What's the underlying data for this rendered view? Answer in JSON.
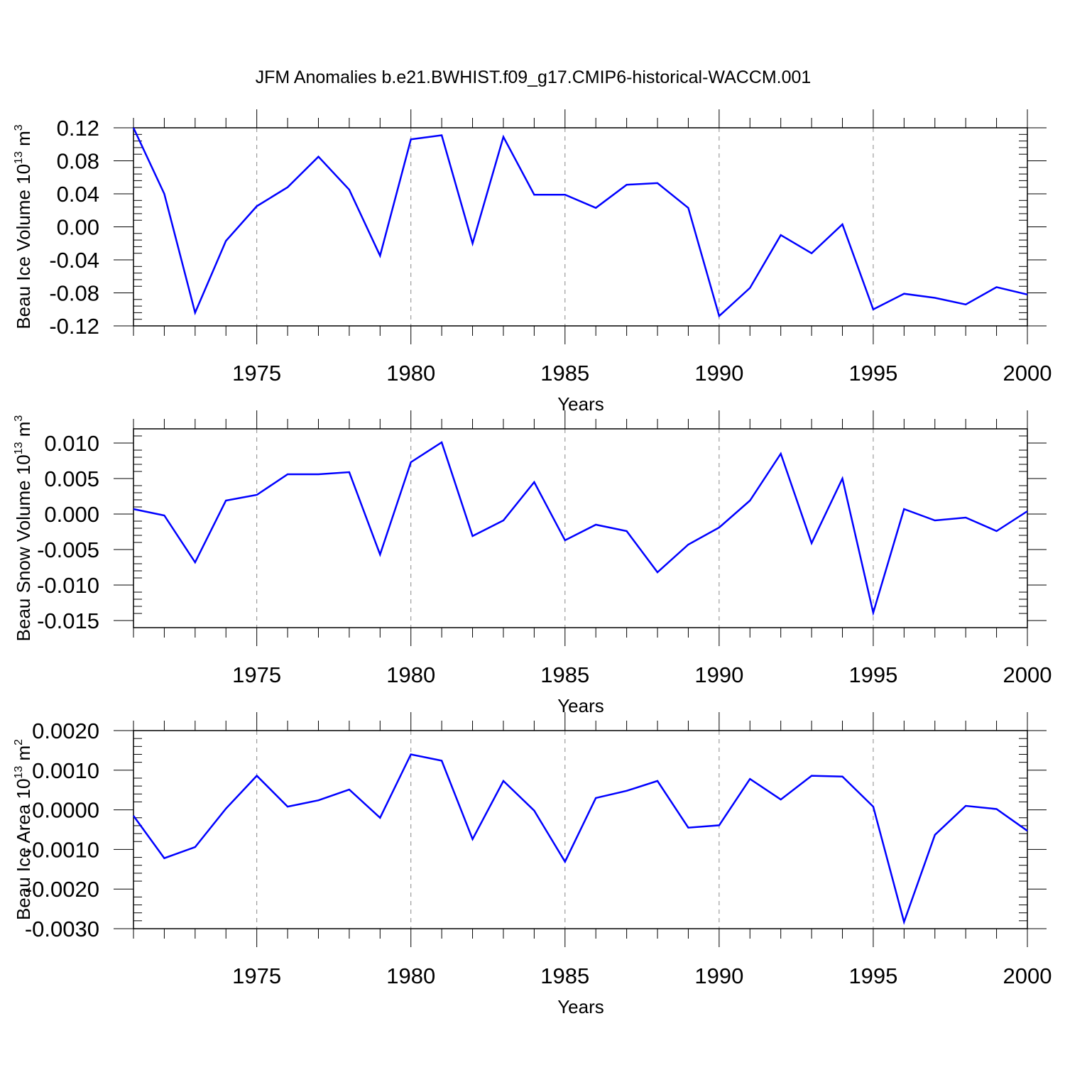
{
  "title": "JFM Anomalies b.e21.BWHIST.f09_g17.CMIP6-historical-WACCM.001",
  "colors": {
    "series": "#0000ff",
    "axes": "#000000",
    "grid": "#888888"
  },
  "chart_data": [
    {
      "type": "line",
      "xlabel": "Years",
      "ylabel_main": "Beau Ice Volume 10",
      "ylabel_exp": "13",
      "ylabel_unit": "m",
      "ylabel_unit_exp": "3",
      "xlim": [
        1971,
        2000
      ],
      "ylim": [
        -0.12,
        0.12
      ],
      "xticks": [
        1975,
        1980,
        1985,
        1990,
        1995,
        2000
      ],
      "yticks": [
        -0.12,
        -0.08,
        -0.04,
        0.0,
        0.04,
        0.08,
        0.12
      ],
      "ytick_labels": [
        "-0.12",
        "-0.08",
        "-0.04",
        "0.00",
        "0.04",
        "0.08",
        "0.12"
      ],
      "grid": "vertical dashed at labeled years",
      "x": [
        1971,
        1972,
        1973,
        1974,
        1975,
        1976,
        1977,
        1978,
        1979,
        1980,
        1981,
        1982,
        1983,
        1984,
        1985,
        1986,
        1987,
        1988,
        1989,
        1990,
        1991,
        1992,
        1993,
        1994,
        1995,
        1996,
        1997,
        1998,
        1999,
        2000
      ],
      "values": [
        0.12,
        0.04,
        -0.104,
        -0.017,
        0.025,
        0.048,
        0.085,
        0.045,
        -0.035,
        0.106,
        0.111,
        -0.02,
        0.109,
        0.039,
        0.039,
        0.023,
        0.051,
        0.053,
        0.023,
        -0.108,
        -0.074,
        -0.01,
        -0.032,
        0.003,
        -0.1,
        -0.081,
        -0.086,
        -0.094,
        -0.073,
        -0.082
      ]
    },
    {
      "type": "line",
      "xlabel": "Years",
      "ylabel_main": "Beau Snow Volume 10",
      "ylabel_exp": "13",
      "ylabel_unit": "m",
      "ylabel_unit_exp": "3",
      "xlim": [
        1971,
        2000
      ],
      "ylim": [
        -0.016,
        0.012
      ],
      "xticks": [
        1975,
        1980,
        1985,
        1990,
        1995,
        2000
      ],
      "yticks": [
        -0.015,
        -0.01,
        -0.005,
        0.0,
        0.005,
        0.01
      ],
      "ytick_labels": [
        "-0.015",
        "-0.010",
        "-0.005",
        "0.000",
        "0.005",
        "0.010"
      ],
      "grid": "vertical dashed at labeled years",
      "x": [
        1971,
        1972,
        1973,
        1974,
        1975,
        1976,
        1977,
        1978,
        1979,
        1980,
        1981,
        1982,
        1983,
        1984,
        1985,
        1986,
        1987,
        1988,
        1989,
        1990,
        1991,
        1992,
        1993,
        1994,
        1995,
        1996,
        1997,
        1998,
        1999,
        2000
      ],
      "values": [
        0.0007,
        -0.0002,
        -0.0068,
        0.0019,
        0.0027,
        0.0056,
        0.0056,
        0.0059,
        -0.0057,
        0.0073,
        0.0101,
        -0.0031,
        -0.0009,
        0.0045,
        -0.0037,
        -0.0015,
        -0.0024,
        -0.0082,
        -0.0043,
        -0.0019,
        0.0019,
        0.0085,
        -0.0041,
        0.005,
        -0.0139,
        0.0007,
        -0.0009,
        -0.0005,
        -0.0024,
        0.0004
      ]
    },
    {
      "type": "line",
      "xlabel": "Years",
      "ylabel_main": "Beau Ice Area 10",
      "ylabel_exp": "13",
      "ylabel_unit": "m",
      "ylabel_unit_exp": "2",
      "xlim": [
        1971,
        2000
      ],
      "ylim": [
        -0.003,
        0.002
      ],
      "xticks": [
        1975,
        1980,
        1985,
        1990,
        1995,
        2000
      ],
      "yticks": [
        -0.003,
        -0.002,
        -0.001,
        0.0,
        0.001,
        0.002
      ],
      "ytick_labels": [
        "-0.0030",
        "-0.0020",
        "-0.0010",
        "0.0000",
        "0.0010",
        "0.0020"
      ],
      "grid": "vertical dashed at labeled years",
      "x": [
        1971,
        1972,
        1973,
        1974,
        1975,
        1976,
        1977,
        1978,
        1979,
        1980,
        1981,
        1982,
        1983,
        1984,
        1985,
        1986,
        1987,
        1988,
        1989,
        1990,
        1991,
        1992,
        1993,
        1994,
        1995,
        1996,
        1997,
        1998,
        1999,
        2000
      ],
      "values": [
        -0.00015,
        -0.00122,
        -0.00094,
        3e-05,
        0.00086,
        8e-05,
        0.00024,
        0.00051,
        -0.0002,
        0.0014,
        0.00124,
        -0.00074,
        0.00073,
        -2e-05,
        -0.00131,
        0.0003,
        0.00048,
        0.00073,
        -0.00045,
        -0.00039,
        0.00078,
        0.00026,
        0.00086,
        0.00084,
        8e-05,
        -0.00283,
        -0.00063,
        0.0001,
        2e-05,
        -0.00053
      ]
    }
  ]
}
